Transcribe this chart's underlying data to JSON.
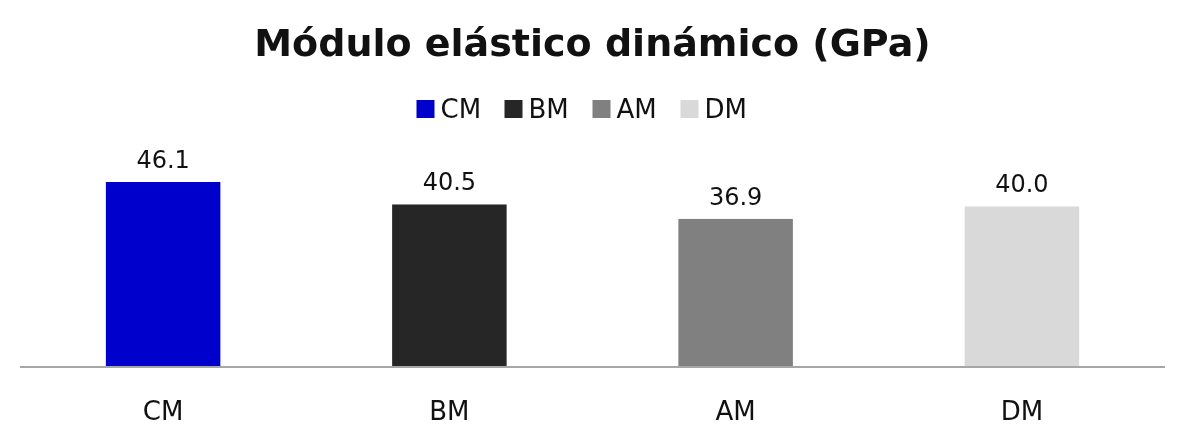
{
  "chart_data": {
    "type": "bar",
    "title": "Módulo elástico dinámico (GPa)",
    "categories": [
      "CM",
      "BM",
      "AM",
      "DM"
    ],
    "stacked": true,
    "legend": "top",
    "series": [
      {
        "name": "CM",
        "color": "#0000cc",
        "values": [
          46.1,
          null,
          null,
          null
        ],
        "value_labels": [
          "46.1",
          null,
          null,
          null
        ]
      },
      {
        "name": "BM",
        "color": "#262626",
        "values": [
          null,
          40.5,
          null,
          null
        ],
        "value_labels": [
          null,
          "40.5",
          null,
          null
        ]
      },
      {
        "name": "AM",
        "color": "#808080",
        "values": [
          null,
          null,
          36.9,
          null
        ],
        "value_labels": [
          null,
          null,
          "36.9",
          null
        ]
      },
      {
        "name": "DM",
        "color": "#d9d9d9",
        "values": [
          null,
          null,
          null,
          40.0
        ],
        "value_labels": [
          null,
          null,
          null,
          "40.0"
        ]
      }
    ]
  }
}
